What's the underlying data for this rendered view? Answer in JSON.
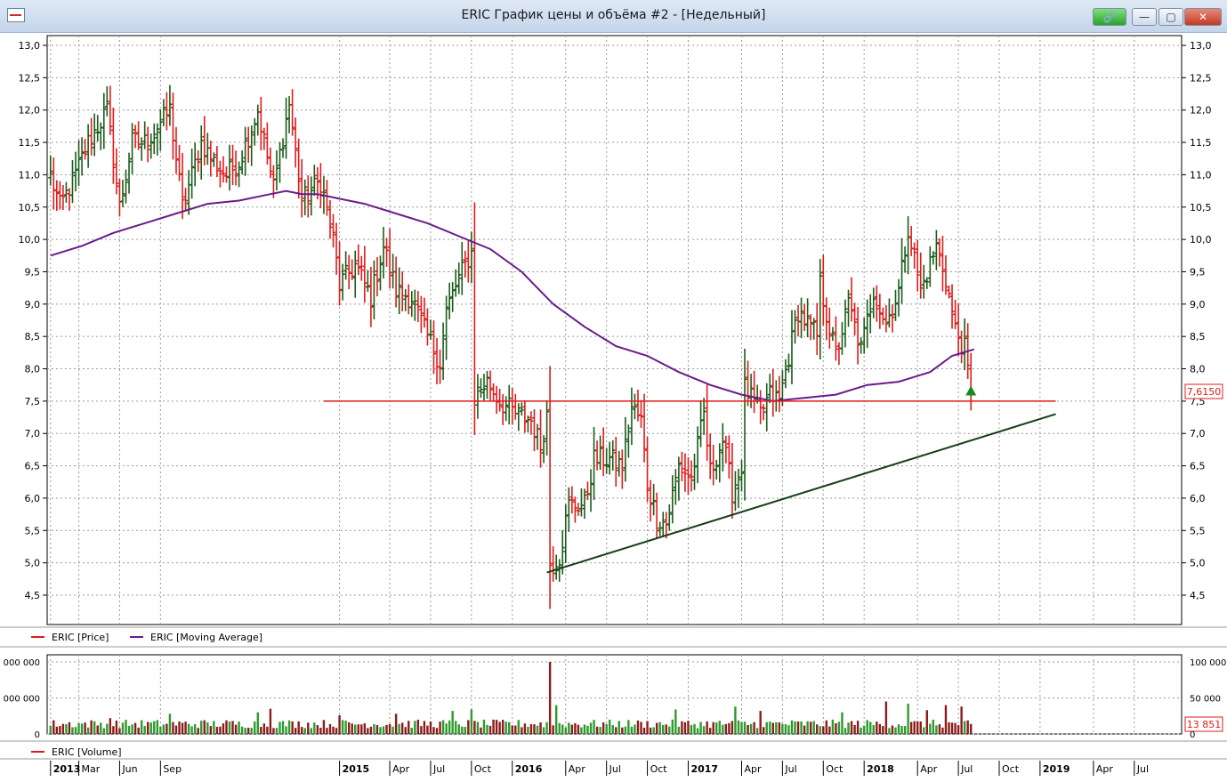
{
  "window": {
    "title": "ERIC График цены и объёма #2 - [Недельный]",
    "buttons": {
      "link": "🔗",
      "minimize": "—",
      "maximize": "▢",
      "close": "✕"
    }
  },
  "legend": {
    "price": "ERIC [Price]",
    "moving_average": "ERIC [Moving Average]",
    "volume": "ERIC [Volume]"
  },
  "price_axis": {
    "ticks": [
      "4,5",
      "5,0",
      "5,5",
      "6,0",
      "6,5",
      "7,0",
      "7,5",
      "8,0",
      "8,5",
      "9,0",
      "9,5",
      "10,0",
      "10,5",
      "11,0",
      "11,5",
      "12,0",
      "12,5",
      "13,0"
    ],
    "tick_values": [
      4.5,
      5.0,
      5.5,
      6.0,
      6.5,
      7.0,
      7.5,
      8.0,
      8.5,
      9.0,
      9.5,
      10.0,
      10.5,
      11.0,
      11.5,
      12.0,
      12.5,
      13.0
    ],
    "range": [
      4.0,
      13.2
    ],
    "last_price_label": "7,6150",
    "last_price": 7.615
  },
  "volume_axis": {
    "ticks_right": [
      "0",
      "50 000",
      "100 000"
    ],
    "ticks_left": [
      "0",
      "000 000",
      "000 000"
    ],
    "tick_values": [
      0,
      50000,
      100000
    ],
    "range": [
      0,
      105000
    ],
    "last_volume_label": "13 851"
  },
  "time_axis": {
    "labels": [
      "2013",
      "Mar",
      "Jun",
      "Sep",
      "2015",
      "Apr",
      "Jul",
      "Oct",
      "2016",
      "Apr",
      "Jul",
      "Oct",
      "2017",
      "Apr",
      "Jul",
      "Oct",
      "2018",
      "Apr",
      "Jul",
      "Oct",
      "2019",
      "Apr",
      "Jul"
    ],
    "bold": [
      "2013",
      "2015",
      "2016",
      "2017",
      "2018",
      "2019"
    ],
    "label_weeks": [
      0,
      9,
      22,
      35,
      92,
      108,
      121,
      134,
      147,
      164,
      177,
      190,
      203,
      220,
      233,
      246,
      259,
      276,
      289,
      302,
      315,
      332,
      345
    ]
  },
  "colors": {
    "up": "#1a5c1a",
    "down": "#e01b1b",
    "ma": "#6a1b8a",
    "support": "#e01b1b",
    "trend": "#144014",
    "volume_up": "#2e9a2e",
    "volume_down": "#8a1c1c",
    "grid": "#9a9a9a"
  },
  "chart_data": [
    {
      "type": "ohlc",
      "series": [
        {
          "name": "ERIC [Price]",
          "weeks": 360
        },
        {
          "name": "ERIC [Moving Average]"
        }
      ],
      "x_unit": "week",
      "close_anchors": [
        [
          0,
          11.0
        ],
        [
          3,
          10.5
        ],
        [
          8,
          11.0
        ],
        [
          12,
          11.5
        ],
        [
          18,
          12.0
        ],
        [
          22,
          10.5
        ],
        [
          26,
          11.5
        ],
        [
          30,
          11.5
        ],
        [
          38,
          12.0
        ],
        [
          42,
          10.5
        ],
        [
          48,
          11.5
        ],
        [
          52,
          11.2
        ],
        [
          56,
          11.0
        ],
        [
          60,
          11.2
        ],
        [
          66,
          12.0
        ],
        [
          71,
          10.8
        ],
        [
          76,
          12.1
        ],
        [
          80,
          10.6
        ],
        [
          86,
          10.9
        ],
        [
          90,
          10.0
        ],
        [
          92,
          9.3
        ],
        [
          97,
          9.6
        ],
        [
          102,
          9.1
        ],
        [
          106,
          9.9
        ],
        [
          110,
          9.2
        ],
        [
          115,
          9.1
        ],
        [
          119,
          8.6
        ],
        [
          124,
          8.1
        ],
        [
          126,
          8.9
        ],
        [
          130,
          9.4
        ],
        [
          134,
          9.8
        ],
        [
          135,
          7.6
        ],
        [
          139,
          7.8
        ],
        [
          143,
          7.5
        ],
        [
          148,
          7.3
        ],
        [
          153,
          7.2
        ],
        [
          156,
          6.8
        ],
        [
          158,
          7.3
        ],
        [
          159,
          5.0
        ],
        [
          162,
          5.1
        ],
        [
          165,
          5.9
        ],
        [
          170,
          5.9
        ],
        [
          173,
          6.6
        ],
        [
          178,
          6.6
        ],
        [
          182,
          6.5
        ],
        [
          185,
          7.4
        ],
        [
          188,
          7.2
        ],
        [
          190,
          6.2
        ],
        [
          193,
          5.7
        ],
        [
          196,
          5.6
        ],
        [
          200,
          6.5
        ],
        [
          204,
          6.3
        ],
        [
          208,
          7.3
        ],
        [
          210,
          6.4
        ],
        [
          214,
          6.9
        ],
        [
          217,
          6.1
        ],
        [
          220,
          6.5
        ],
        [
          221,
          7.7
        ],
        [
          226,
          7.3
        ],
        [
          229,
          7.6
        ],
        [
          232,
          7.5
        ],
        [
          238,
          8.9
        ],
        [
          244,
          8.5
        ],
        [
          245,
          9.3
        ],
        [
          250,
          8.2
        ],
        [
          254,
          9.0
        ],
        [
          258,
          8.3
        ],
        [
          262,
          9.2
        ],
        [
          266,
          8.7
        ],
        [
          270,
          9.2
        ],
        [
          273,
          10.2
        ],
        [
          277,
          9.2
        ],
        [
          282,
          9.9
        ],
        [
          285,
          9.4
        ],
        [
          288,
          8.6
        ],
        [
          291,
          8.3
        ],
        [
          293,
          7.6
        ]
      ],
      "moving_average": [
        [
          0,
          9.75
        ],
        [
          10,
          9.9
        ],
        [
          20,
          10.1
        ],
        [
          30,
          10.25
        ],
        [
          40,
          10.4
        ],
        [
          50,
          10.55
        ],
        [
          60,
          10.6
        ],
        [
          70,
          10.7
        ],
        [
          75,
          10.75
        ],
        [
          80,
          10.7
        ],
        [
          85,
          10.7
        ],
        [
          90,
          10.65
        ],
        [
          100,
          10.55
        ],
        [
          110,
          10.4
        ],
        [
          120,
          10.25
        ],
        [
          130,
          10.05
        ],
        [
          140,
          9.85
        ],
        [
          150,
          9.5
        ],
        [
          160,
          9.0
        ],
        [
          170,
          8.65
        ],
        [
          180,
          8.35
        ],
        [
          190,
          8.2
        ],
        [
          200,
          7.95
        ],
        [
          210,
          7.75
        ],
        [
          220,
          7.6
        ],
        [
          230,
          7.5
        ],
        [
          240,
          7.55
        ],
        [
          250,
          7.6
        ],
        [
          260,
          7.75
        ],
        [
          270,
          7.8
        ],
        [
          280,
          7.95
        ],
        [
          287,
          8.2
        ],
        [
          294,
          8.3
        ]
      ],
      "support_line": {
        "y": 7.5,
        "from_week": 87,
        "to_week": 320
      },
      "trend_line": {
        "from": [
          158,
          4.85
        ],
        "to": [
          320,
          7.3
        ]
      },
      "ylim": [
        4.0,
        13.2
      ]
    },
    {
      "type": "bar",
      "series": [
        {
          "name": "ERIC [Volume]"
        }
      ],
      "spikes": [
        [
          19,
          22000
        ],
        [
          38,
          28000
        ],
        [
          66,
          30000
        ],
        [
          70,
          35000
        ],
        [
          92,
          26000
        ],
        [
          110,
          28000
        ],
        [
          128,
          32000
        ],
        [
          134,
          34000
        ],
        [
          159,
          100000
        ],
        [
          161,
          40000
        ],
        [
          199,
          34000
        ],
        [
          218,
          38000
        ],
        [
          226,
          32000
        ],
        [
          252,
          30000
        ],
        [
          266,
          45000
        ],
        [
          273,
          42000
        ],
        [
          279,
          33000
        ],
        [
          285,
          40000
        ],
        [
          290,
          38000
        ],
        [
          293,
          45000
        ]
      ],
      "ylim": [
        0,
        105000
      ]
    }
  ]
}
